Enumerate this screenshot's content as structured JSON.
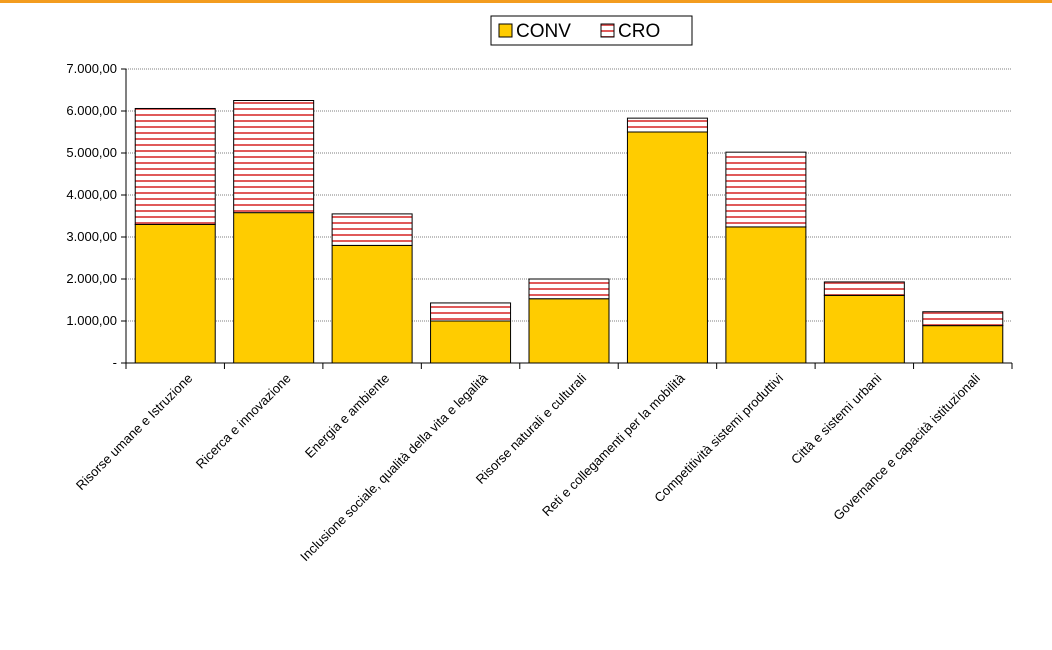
{
  "chart_data": {
    "type": "bar",
    "stacked": true,
    "categories": [
      "Risorse umane e Istruzione",
      "Ricerca e innovazione",
      "Energia e ambiente",
      "Inclusione sociale, qualità della vita e legalità",
      "Risorse naturali e culturali",
      "Reti e collegamenti per la mobilità",
      "Competitività sistemi produttivi",
      "Città e sistemi urbani",
      "Governance e capacità istituzionali"
    ],
    "series": [
      {
        "name": "CONV",
        "values": [
          3300,
          3580,
          2800,
          1000,
          1530,
          5500,
          3240,
          1610,
          890
        ]
      },
      {
        "name": "CRO",
        "values": [
          2760,
          2670,
          750,
          430,
          470,
          330,
          1780,
          320,
          330
        ]
      }
    ],
    "ylim": [
      0,
      7000
    ],
    "yticks": [
      "-",
      "1.000,00",
      "2.000,00",
      "3.000,00",
      "4.000,00",
      "5.000,00",
      "6.000,00",
      "7.000,00"
    ],
    "legend_position": "top-center",
    "grid": true,
    "colors": {
      "CONV": "#ffcc00",
      "CRO_stripe": "#e05a5a",
      "top_line": "#f39c1f"
    }
  }
}
